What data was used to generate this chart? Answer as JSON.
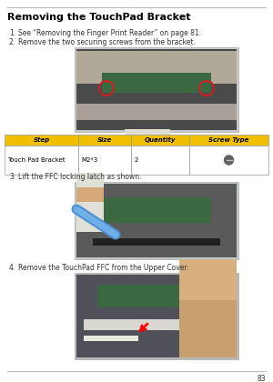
{
  "title": "Removing the TouchPad Bracket",
  "bg_color": "#ffffff",
  "line_color": "#bbbbbb",
  "title_color": "#000000",
  "step1_label": "1.",
  "step1_text": "See “Removing the Finger Print Reader” on page 81.",
  "step2_label": "2.",
  "step2_text": "Remove the two securing screws from the bracket.",
  "step3_label": "3.",
  "step3_text": "Lift the FFC locking latch as shown.",
  "step4_label": "4.",
  "step4_text": "Remove the TouchPad FFC from the Upper Cover.",
  "table_header_bg": "#f0c000",
  "table_header_color": "#000000",
  "table_headers": [
    "Step",
    "Size",
    "Quantity",
    "Screw Type"
  ],
  "table_row": [
    "Touch Pad Bracket",
    "M2*3",
    "2",
    ""
  ],
  "footer_line_color": "#bbbbbb",
  "page_number": "83",
  "img1_bg": "#7a8a8a",
  "img1_inner": "#6a7878",
  "img2_bg": "#8090a0",
  "img2_inner": "#90a0b0",
  "img3_bg": "#888898",
  "img3_inner": "#909898"
}
